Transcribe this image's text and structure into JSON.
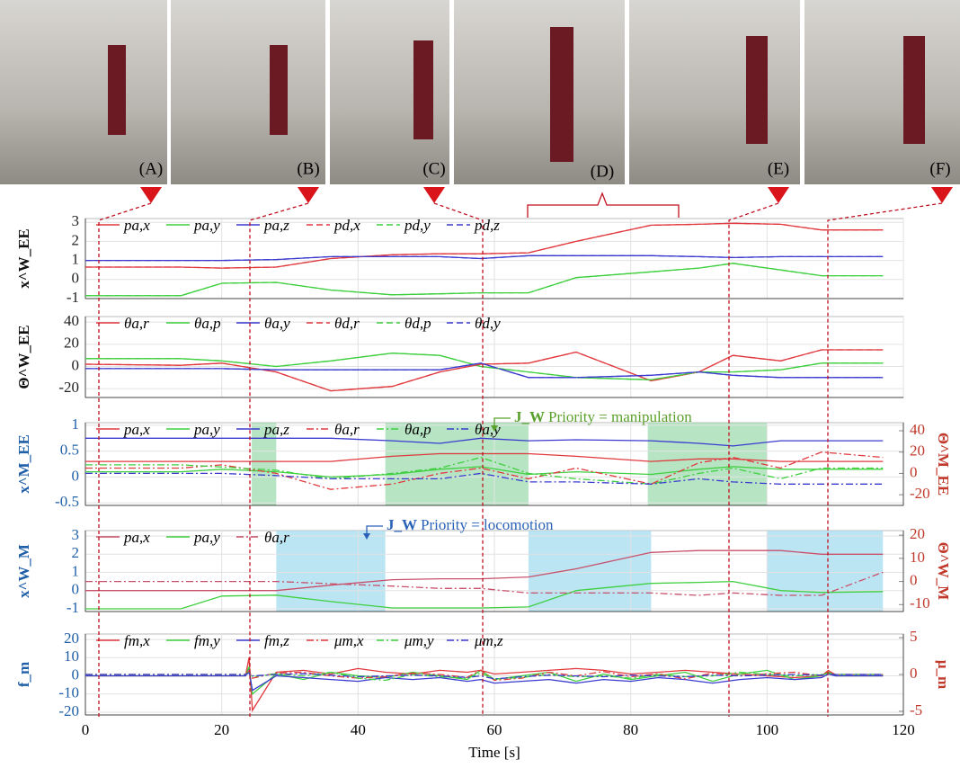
{
  "photos": {
    "labels": [
      "(A)",
      "(B)",
      "(C)",
      "(D)",
      "(E)",
      "(F)"
    ]
  },
  "chart_data": [
    {
      "type": "line",
      "ylabel": "x^W_EE",
      "xlim": [
        0,
        120
      ],
      "xticks": [
        0,
        20,
        40,
        60,
        80,
        100,
        120
      ],
      "xtick_labels": false,
      "ylim": [
        -1,
        3.2
      ],
      "yticks": [
        -1,
        0,
        1,
        2,
        3
      ],
      "x": [
        0,
        14,
        20,
        28,
        36,
        45,
        52,
        58,
        65,
        72,
        83,
        90,
        95,
        102,
        108,
        117
      ],
      "series": [
        {
          "name": "pa,x",
          "color": "#e0393e",
          "style": "solid",
          "values": [
            0.65,
            0.65,
            0.6,
            0.65,
            1.1,
            1.3,
            1.35,
            1.35,
            1.4,
            2,
            2.85,
            2.9,
            2.95,
            2.9,
            2.6,
            2.6
          ]
        },
        {
          "name": "pa,y",
          "color": "#3fcf3f",
          "style": "solid",
          "values": [
            -0.85,
            -0.85,
            -0.2,
            -0.15,
            -0.55,
            -0.8,
            -0.75,
            -0.7,
            -0.7,
            0.1,
            0.4,
            0.6,
            0.85,
            0.5,
            0.2,
            0.2
          ]
        },
        {
          "name": "pa,z",
          "color": "#3a3ad0",
          "style": "solid",
          "values": [
            1,
            1,
            1,
            1.05,
            1.2,
            1.2,
            1.2,
            1.1,
            1.25,
            1.25,
            1.25,
            1.2,
            1.15,
            1.2,
            1.2,
            1.2
          ]
        },
        {
          "name": "pd,x",
          "color": "#e0393e",
          "style": "dashed",
          "values": [
            0.65,
            0.65,
            0.6,
            0.65,
            1.1,
            1.3,
            1.35,
            1.35,
            1.4,
            2,
            2.85,
            2.9,
            2.95,
            2.9,
            2.6,
            2.6
          ]
        },
        {
          "name": "pd,y",
          "color": "#3fcf3f",
          "style": "dashed",
          "values": [
            -0.85,
            -0.85,
            -0.2,
            -0.15,
            -0.55,
            -0.8,
            -0.75,
            -0.7,
            -0.7,
            0.1,
            0.4,
            0.6,
            0.85,
            0.5,
            0.2,
            0.2
          ]
        },
        {
          "name": "pd,z",
          "color": "#3a3ad0",
          "style": "dashed",
          "values": [
            1,
            1,
            1,
            1.05,
            1.2,
            1.2,
            1.2,
            1.1,
            1.25,
            1.25,
            1.25,
            1.2,
            1.15,
            1.2,
            1.2,
            1.2
          ]
        }
      ]
    },
    {
      "type": "line",
      "ylabel": "Θ^W_EE",
      "xlim": [
        0,
        120
      ],
      "xticks": [
        0,
        20,
        40,
        60,
        80,
        100,
        120
      ],
      "xtick_labels": false,
      "ylim": [
        -28,
        45
      ],
      "yticks": [
        -20,
        0,
        20,
        40
      ],
      "x": [
        0,
        14,
        20,
        28,
        36,
        45,
        52,
        58,
        65,
        72,
        83,
        90,
        95,
        102,
        108,
        117
      ],
      "series": [
        {
          "name": "θa,r",
          "color": "#e0393e",
          "style": "solid",
          "values": [
            2,
            1,
            3,
            -5,
            -22,
            -18,
            -5,
            2,
            3,
            13,
            -13,
            -5,
            10,
            5,
            15,
            15
          ]
        },
        {
          "name": "θa,p",
          "color": "#3fcf3f",
          "style": "solid",
          "values": [
            7,
            7,
            5,
            0,
            5,
            12,
            10,
            0,
            -5,
            -10,
            -12,
            -5,
            -5,
            -3,
            3,
            3
          ]
        },
        {
          "name": "θa,y",
          "color": "#3a3ad0",
          "style": "solid",
          "values": [
            -2,
            -2,
            -2,
            -3,
            -3,
            -3,
            -3,
            3,
            -10,
            -10,
            -8,
            -5,
            -8,
            -10,
            -10,
            -10
          ]
        },
        {
          "name": "θd,r",
          "color": "#e0393e",
          "style": "dashed",
          "values": [
            2,
            1,
            3,
            -5,
            -22,
            -18,
            -5,
            2,
            3,
            13,
            -13,
            -5,
            10,
            5,
            15,
            15
          ]
        },
        {
          "name": "θd,p",
          "color": "#3fcf3f",
          "style": "dashed",
          "values": [
            7,
            7,
            5,
            0,
            5,
            12,
            10,
            0,
            -5,
            -10,
            -12,
            -5,
            -5,
            -3,
            3,
            3
          ]
        },
        {
          "name": "θd,y",
          "color": "#3a3ad0",
          "style": "dashed",
          "values": [
            -2,
            -2,
            -2,
            -3,
            -3,
            -3,
            -3,
            3,
            -10,
            -10,
            -8,
            -5,
            -8,
            -10,
            -10,
            -10
          ]
        }
      ]
    },
    {
      "type": "line",
      "ylabel": "x^M_EE",
      "y2label": "Θ^M_EE",
      "ylabel_color": "#1f5fa8",
      "y2label_color": "#c0392b",
      "xlim": [
        0,
        120
      ],
      "xticks": [
        0,
        20,
        40,
        60,
        80,
        100,
        120
      ],
      "xtick_labels": false,
      "ylim": [
        -0.55,
        1.05
      ],
      "yticks": [
        -0.5,
        0,
        0.5,
        1
      ],
      "y2lim": [
        -30,
        47.6
      ],
      "y2ticks": [
        -20,
        0,
        20,
        40
      ],
      "shaded": {
        "color": "#9fdcb0",
        "spans": [
          [
            24.4,
            28
          ],
          [
            44,
            65
          ],
          [
            82.5,
            100
          ]
        ]
      },
      "annotation": {
        "symbol": "J_W",
        "text": "Priority = manipulation",
        "color": "#5aa02c"
      },
      "x": [
        0,
        14,
        20,
        28,
        36,
        45,
        52,
        58,
        65,
        72,
        83,
        90,
        95,
        102,
        108,
        117
      ],
      "series": [
        {
          "name": "pa,x",
          "color": "#e0393e",
          "style": "solid",
          "values": [
            0.3,
            0.3,
            0.3,
            0.3,
            0.3,
            0.4,
            0.45,
            0.45,
            0.45,
            0.4,
            0.3,
            0.35,
            0.35,
            0.3,
            0.3,
            0.3
          ]
        },
        {
          "name": "pa,y",
          "color": "#3fcf3f",
          "style": "solid",
          "values": [
            0.1,
            0.1,
            0.15,
            0.1,
            0,
            0.05,
            0.15,
            0.2,
            0.05,
            0.1,
            0.05,
            0.15,
            0.2,
            0.15,
            0.15,
            0.15
          ]
        },
        {
          "name": "pa,z",
          "color": "#3a3ad0",
          "style": "solid",
          "values": [
            0.75,
            0.75,
            0.75,
            0.75,
            0.75,
            0.7,
            0.65,
            0.75,
            0.7,
            0.72,
            0.7,
            0.65,
            0.6,
            0.7,
            0.7,
            0.7
          ]
        },
        {
          "name": "θa,r",
          "color": "#e0393e",
          "style": "dashdot",
          "axis": "y2",
          "values": [
            5,
            5,
            8,
            0,
            -15,
            -10,
            0,
            5,
            -5,
            5,
            -10,
            10,
            15,
            5,
            20,
            15
          ]
        },
        {
          "name": "θa,p",
          "color": "#3fcf3f",
          "style": "dashdot",
          "axis": "y2",
          "values": [
            8,
            8,
            6,
            3,
            -5,
            0,
            5,
            15,
            0,
            -5,
            -10,
            0,
            5,
            -5,
            5,
            5
          ]
        },
        {
          "name": "θa,y",
          "color": "#3a3ad0",
          "style": "dashdot",
          "axis": "y2",
          "values": [
            0,
            0,
            0,
            -2,
            -5,
            -5,
            -5,
            0,
            -8,
            -8,
            -10,
            -5,
            -8,
            -10,
            -10,
            -10
          ]
        }
      ]
    },
    {
      "type": "line",
      "ylabel": "x^W_M",
      "y2label": "Θ^W_M",
      "ylabel_color": "#1f5fa8",
      "y2label_color": "#c0392b",
      "xlim": [
        0,
        120
      ],
      "xticks": [
        0,
        20,
        40,
        60,
        80,
        100,
        120
      ],
      "xtick_labels": false,
      "ylim": [
        -1.15,
        3.3
      ],
      "yticks": [
        -1,
        0,
        1,
        2,
        3
      ],
      "y2lim": [
        -13,
        22
      ],
      "y2ticks": [
        -10,
        0,
        10,
        20
      ],
      "shaded": {
        "color": "#a6dcf0",
        "spans": [
          [
            28,
            44
          ],
          [
            65,
            83
          ],
          [
            100,
            117
          ]
        ]
      },
      "annotation": {
        "symbol": "J_W",
        "text": "Priority = locomotion",
        "color": "#2a62b8"
      },
      "x": [
        0,
        14,
        20,
        28,
        36,
        45,
        52,
        58,
        65,
        72,
        83,
        90,
        95,
        102,
        108,
        117
      ],
      "series": [
        {
          "name": "pa,x",
          "color": "#c8506a",
          "style": "solid",
          "values": [
            0,
            0,
            0,
            0,
            0.3,
            0.6,
            0.65,
            0.65,
            0.75,
            1.2,
            2.1,
            2.2,
            2.2,
            2.2,
            2,
            2
          ]
        },
        {
          "name": "pa,y",
          "color": "#3fcf3f",
          "style": "solid",
          "values": [
            -1,
            -1,
            -0.3,
            -0.25,
            -0.6,
            -0.95,
            -0.95,
            -0.95,
            -0.9,
            0,
            0.4,
            0.45,
            0.5,
            0,
            -0.1,
            -0.05
          ]
        },
        {
          "name": "θa,r",
          "color": "#c8506a",
          "style": "dashdot",
          "axis": "y2",
          "values": [
            0,
            0,
            0,
            0,
            -1,
            -2,
            -3,
            -3,
            -5,
            -5,
            -5,
            -6,
            -5,
            -6,
            -6,
            4
          ]
        }
      ]
    },
    {
      "type": "line",
      "ylabel": "f_m",
      "y2label": "μ_m",
      "ylabel_color": "#1f5fa8",
      "y2label_color": "#c0392b",
      "xlabel": "Time [s]",
      "xlim": [
        0,
        120
      ],
      "xticks": [
        0,
        20,
        40,
        60,
        80,
        100,
        120
      ],
      "xtick_labels": true,
      "ylim": [
        -21.5,
        23
      ],
      "yticks": [
        -20,
        -10,
        0,
        10,
        20
      ],
      "y2lim": [
        -5.5,
        5.5
      ],
      "y2ticks": [
        -5,
        0,
        5
      ],
      "x": [
        0,
        23.5,
        24,
        24.5,
        28,
        32,
        36,
        40,
        44,
        48,
        52,
        56,
        58,
        60,
        64,
        68,
        72,
        76,
        80,
        84,
        88,
        92,
        96,
        100,
        104,
        108,
        109,
        110,
        117
      ],
      "series": [
        {
          "name": "fm,x",
          "color": "#e0393e",
          "style": "solid",
          "values": [
            0,
            0,
            10,
            -19,
            2,
            3,
            1,
            4,
            2,
            1,
            3,
            2,
            3,
            1,
            2,
            3,
            4,
            3,
            1,
            2,
            3,
            2,
            1,
            0,
            -1,
            0,
            3,
            0,
            0
          ]
        },
        {
          "name": "fm,y",
          "color": "#3fcf3f",
          "style": "solid",
          "values": [
            0,
            0,
            5,
            -10,
            1,
            -2,
            2,
            0,
            -1,
            2,
            0,
            -2,
            3,
            -2,
            0,
            2,
            -3,
            1,
            -2,
            0,
            2,
            -3,
            1,
            3,
            -2,
            0,
            2,
            0,
            0
          ]
        },
        {
          "name": "fm,z",
          "color": "#3a3ad0",
          "style": "solid",
          "values": [
            0,
            0,
            3,
            -8,
            0,
            -1,
            -2,
            -3,
            -1,
            -2,
            -1,
            -3,
            -2,
            -4,
            -3,
            -2,
            -4,
            -2,
            -3,
            -1,
            -2,
            -4,
            -2,
            -1,
            -2,
            -1,
            1,
            0,
            0
          ]
        },
        {
          "name": "μm,x",
          "color": "#e0393e",
          "style": "dashdot",
          "axis": "y2",
          "values": [
            0,
            0,
            0.5,
            -0.5,
            0.2,
            0.3,
            -0.2,
            -0.5,
            -0.3,
            0.2,
            0,
            -0.4,
            0.6,
            -0.8,
            -0.5,
            0.3,
            -0.2,
            0.4,
            -0.3,
            0.1,
            -0.6,
            0.2,
            -0.2,
            0.1,
            0.3,
            -0.2,
            0.5,
            0,
            0
          ]
        },
        {
          "name": "μm,y",
          "color": "#3fcf3f",
          "style": "dashdot",
          "axis": "y2",
          "values": [
            0,
            0,
            0.3,
            -0.3,
            0.1,
            -0.2,
            0.3,
            -0.5,
            -0.8,
            0,
            -0.3,
            -0.5,
            0.2,
            -0.6,
            -0.4,
            0,
            -0.3,
            -0.2,
            -0.5,
            0,
            -0.3,
            -0.2,
            0.3,
            0,
            -0.2,
            0,
            0.2,
            0,
            0
          ]
        },
        {
          "name": "μm,z",
          "color": "#3a3ad0",
          "style": "dashdot",
          "axis": "y2",
          "values": [
            0,
            0,
            0.2,
            -0.2,
            0,
            0.1,
            -0.1,
            -0.3,
            -0.2,
            -0.1,
            -0.2,
            -0.4,
            -0.2,
            -0.6,
            -0.3,
            -0.1,
            -0.2,
            -0.3,
            -0.1,
            -0.2,
            -0.3,
            -0.1,
            -0.2,
            -0.1,
            0,
            -0.1,
            0,
            0,
            0
          ]
        }
      ]
    }
  ]
}
